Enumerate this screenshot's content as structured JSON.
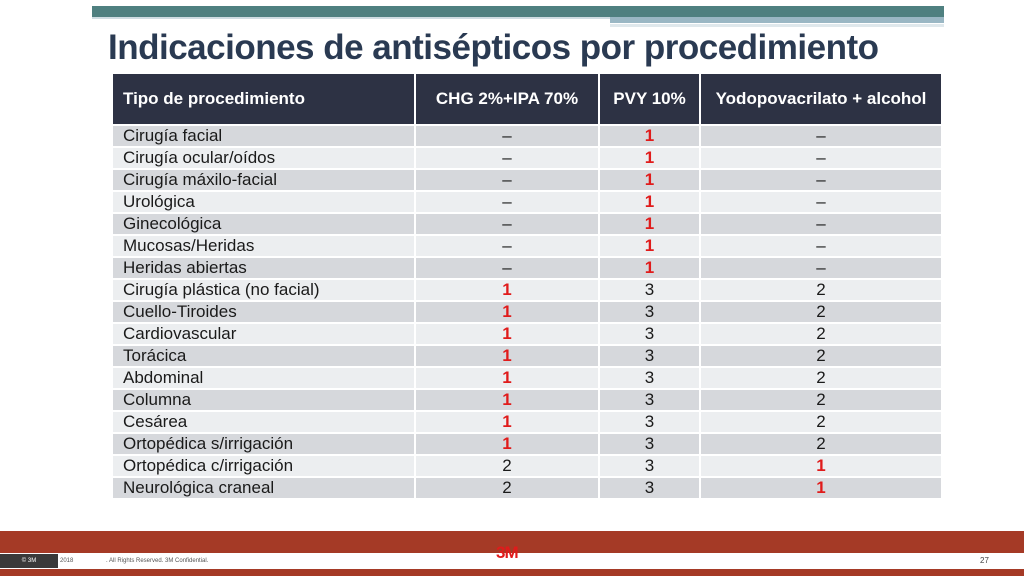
{
  "title": "Indicaciones de antisépticos por procedimiento",
  "table": {
    "headers": [
      "Tipo de procedimiento",
      "CHG 2%+IPA 70%",
      "PVY 10%",
      "Yodopovacrilato + alcohol"
    ],
    "highlight_color": "#e01b1b",
    "rows": [
      {
        "cells": [
          "Cirugía facial",
          "–",
          "1",
          "–"
        ],
        "red": [
          false,
          false,
          true,
          false
        ]
      },
      {
        "cells": [
          "Cirugía ocular/oídos",
          "–",
          "1",
          "–"
        ],
        "red": [
          false,
          false,
          true,
          false
        ]
      },
      {
        "cells": [
          "Cirugía máxilo-facial",
          "–",
          "1",
          "–"
        ],
        "red": [
          false,
          false,
          true,
          false
        ]
      },
      {
        "cells": [
          "Urológica",
          "–",
          "1",
          "–"
        ],
        "red": [
          false,
          false,
          true,
          false
        ]
      },
      {
        "cells": [
          "Ginecológica",
          "–",
          "1",
          "–"
        ],
        "red": [
          false,
          false,
          true,
          false
        ]
      },
      {
        "cells": [
          "Mucosas/Heridas",
          "–",
          "1",
          "–"
        ],
        "red": [
          false,
          false,
          true,
          false
        ]
      },
      {
        "cells": [
          "Heridas abiertas",
          "–",
          "1",
          "–"
        ],
        "red": [
          false,
          false,
          true,
          false
        ]
      },
      {
        "cells": [
          "Cirugía plástica (no facial)",
          "1",
          "3",
          "2"
        ],
        "red": [
          false,
          true,
          false,
          false
        ]
      },
      {
        "cells": [
          "Cuello-Tiroides",
          "1",
          "3",
          "2"
        ],
        "red": [
          false,
          true,
          false,
          false
        ]
      },
      {
        "cells": [
          "Cardiovascular",
          "1",
          "3",
          "2"
        ],
        "red": [
          false,
          true,
          false,
          false
        ]
      },
      {
        "cells": [
          "Torácica",
          "1",
          "3",
          "2"
        ],
        "red": [
          false,
          true,
          false,
          false
        ]
      },
      {
        "cells": [
          "Abdominal",
          "1",
          "3",
          "2"
        ],
        "red": [
          false,
          true,
          false,
          false
        ]
      },
      {
        "cells": [
          "Columna",
          "1",
          "3",
          "2"
        ],
        "red": [
          false,
          true,
          false,
          false
        ]
      },
      {
        "cells": [
          "Cesárea",
          "1",
          "3",
          "2"
        ],
        "red": [
          false,
          true,
          false,
          false
        ]
      },
      {
        "cells": [
          "Ortopédica s/irrigación",
          "1",
          "3",
          "2"
        ],
        "red": [
          false,
          true,
          false,
          false
        ]
      },
      {
        "cells": [
          "Ortopédica c/irrigación",
          "2",
          "3",
          "1"
        ],
        "red": [
          false,
          false,
          false,
          true
        ]
      },
      {
        "cells": [
          "Neurológica craneal",
          "2",
          "3",
          "1"
        ],
        "red": [
          false,
          false,
          false,
          true
        ]
      }
    ]
  },
  "footer": {
    "copyright": "© 3M",
    "year": "2018",
    "rights": ". All Rights Reserved.   3M Confidential.",
    "logo": "3M",
    "page_number": "27"
  }
}
